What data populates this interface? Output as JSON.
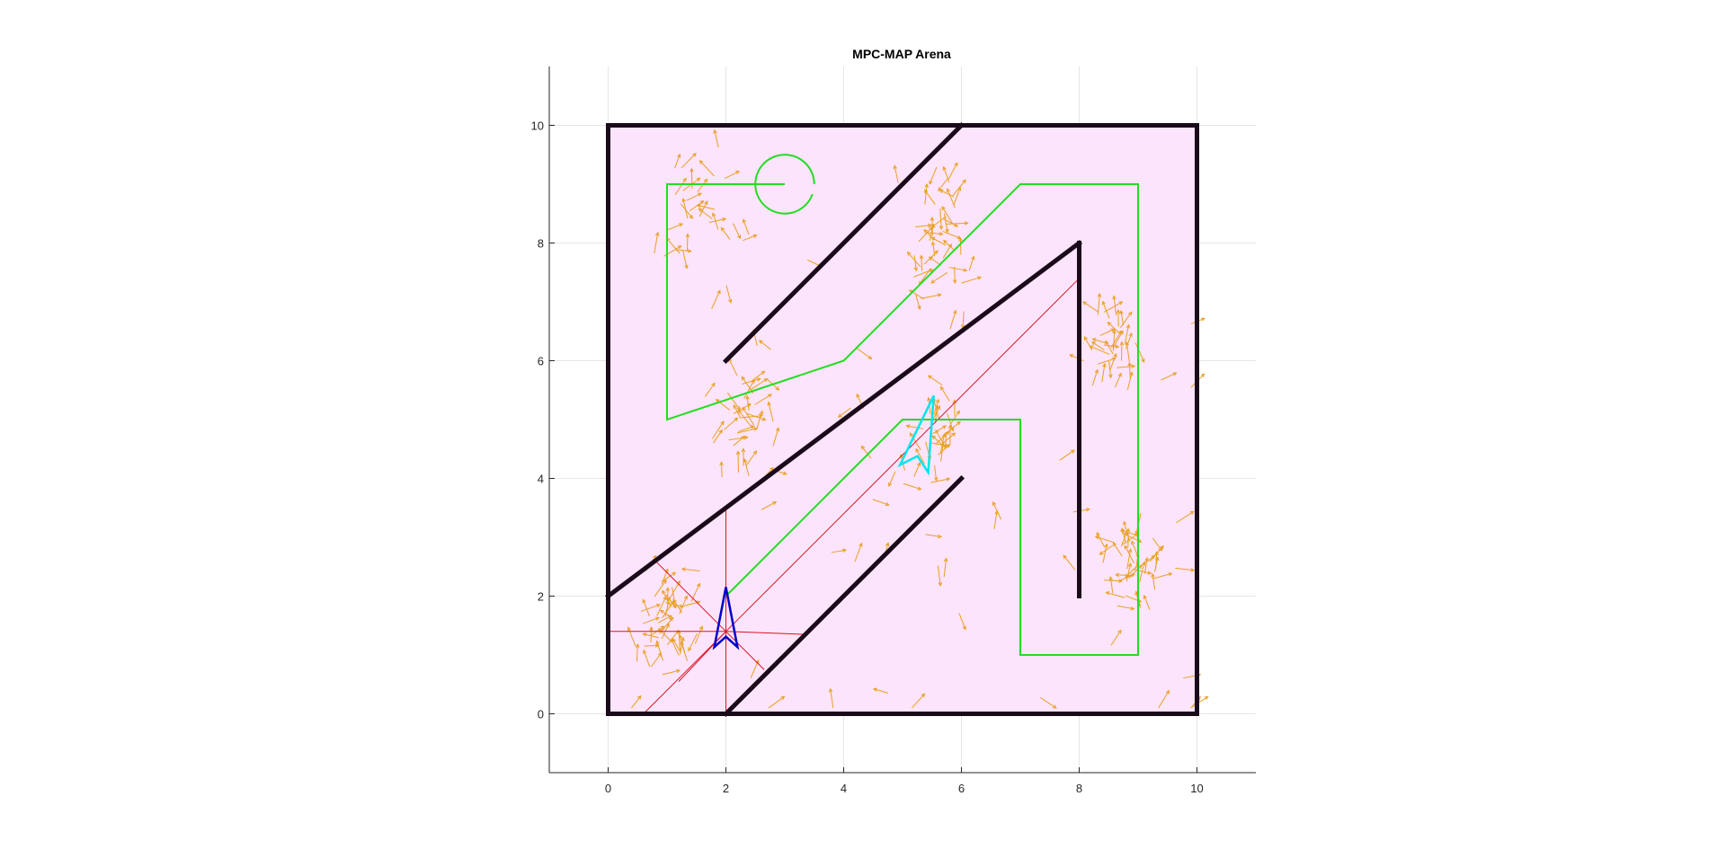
{
  "chart_data": {
    "type": "scatter",
    "title": "MPC-MAP Arena",
    "xlabel": "",
    "ylabel": "",
    "xlim": [
      -1,
      11
    ],
    "ylim": [
      -1,
      11
    ],
    "grid": true,
    "x_ticks": [
      "0",
      "2",
      "4",
      "6",
      "8",
      "10"
    ],
    "y_ticks": [
      "0",
      "2",
      "4",
      "6",
      "8",
      "10"
    ],
    "x_tick_values": [
      0,
      2,
      4,
      6,
      8,
      10
    ],
    "y_tick_values": [
      0,
      2,
      4,
      6,
      8,
      10
    ],
    "arena": {
      "fill_color": "#fce4fc",
      "border_color": "#7a2a70",
      "corners": [
        [
          0,
          0
        ],
        [
          10,
          0
        ],
        [
          10,
          10
        ],
        [
          0,
          10
        ]
      ]
    },
    "walls": {
      "color": "#1a0a1a",
      "segments": [
        [
          [
            0,
            0
          ],
          [
            10,
            0
          ]
        ],
        [
          [
            10,
            0
          ],
          [
            10,
            10
          ]
        ],
        [
          [
            10,
            10
          ],
          [
            0,
            10
          ]
        ],
        [
          [
            0,
            10
          ],
          [
            0,
            0
          ]
        ],
        [
          [
            2,
            6
          ],
          [
            6,
            10
          ]
        ],
        [
          [
            0,
            2
          ],
          [
            8,
            8
          ]
        ],
        [
          [
            8,
            8
          ],
          [
            8,
            2
          ]
        ],
        [
          [
            2,
            0
          ],
          [
            6,
            4
          ]
        ]
      ]
    },
    "path": {
      "color": "#22dd22",
      "points": [
        [
          2,
          2
        ],
        [
          5,
          5
        ],
        [
          7,
          5
        ],
        [
          7,
          1
        ],
        [
          9,
          1
        ],
        [
          9,
          9
        ],
        [
          7,
          9
        ],
        [
          4,
          6
        ],
        [
          1,
          5
        ],
        [
          1,
          9
        ],
        [
          3,
          9
        ]
      ]
    },
    "goal": {
      "color": "#22dd22",
      "center": [
        3,
        9
      ],
      "radius": 0.5
    },
    "robot": {
      "color": "#0000cc",
      "position": [
        2,
        1.45
      ],
      "heading_deg": 90
    },
    "estimate": {
      "color": "#00e5ee",
      "position": [
        5.3,
        4.55
      ],
      "heading_deg": 75
    },
    "lidar": {
      "color": "#dd1122",
      "origin": [
        2,
        1.4
      ],
      "endpoints": [
        [
          2,
          3.5
        ],
        [
          3.35,
          1.35
        ],
        [
          2,
          0
        ],
        [
          0,
          1.4
        ],
        [
          8,
          7.4
        ],
        [
          0.6,
          0
        ],
        [
          0.8,
          2.6
        ],
        [
          2.65,
          0.75
        ],
        [
          1.2,
          0.55
        ]
      ]
    },
    "particles": {
      "color": "#e8a020",
      "clusters": [
        {
          "center": [
            1,
            1.4
          ],
          "spread": [
            0.25,
            0.45
          ],
          "count": 42
        },
        {
          "center": [
            2.3,
            4.9
          ],
          "spread": [
            0.3,
            0.55
          ],
          "count": 38
        },
        {
          "center": [
            1.7,
            8.3
          ],
          "spread": [
            0.35,
            0.5
          ],
          "count": 30
        },
        {
          "center": [
            5.6,
            8
          ],
          "spread": [
            0.35,
            0.6
          ],
          "count": 46
        },
        {
          "center": [
            5.5,
            4.6
          ],
          "spread": [
            0.2,
            0.4
          ],
          "count": 28
        },
        {
          "center": [
            8.55,
            6.2
          ],
          "spread": [
            0.25,
            0.4
          ],
          "count": 34
        },
        {
          "center": [
            8.95,
            2.6
          ],
          "spread": [
            0.3,
            0.4
          ],
          "count": 38
        },
        {
          "center": [
            5.5,
            2.2
          ],
          "spread": [
            2.8,
            2.2
          ],
          "count": 45
        }
      ]
    }
  }
}
